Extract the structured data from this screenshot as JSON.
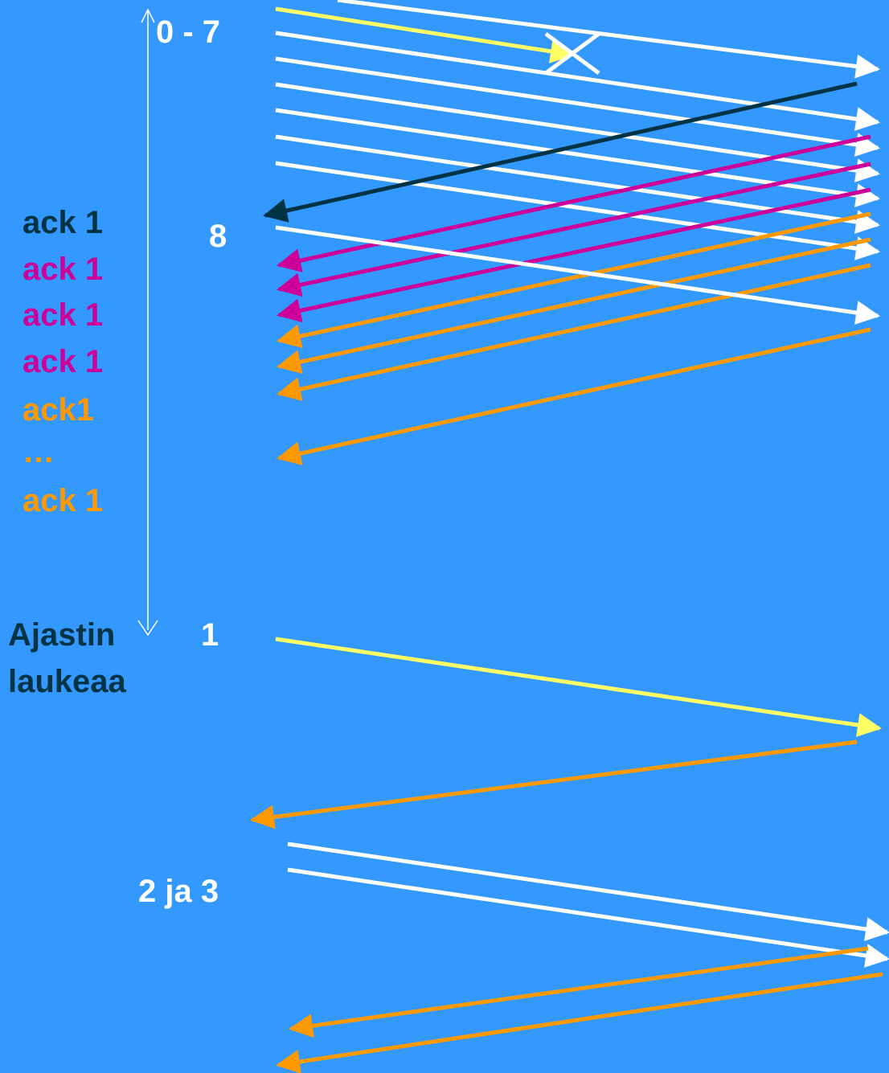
{
  "labels": {
    "seq_0_7": "0 - 7",
    "seq_8": "8",
    "seq_1": "1",
    "seq_2_3": "2 ja 3",
    "ack_1": "ack 1",
    "ack_2": "ack 1",
    "ack_3": "ack 1",
    "ack_4": "ack 1",
    "ack_5": "ack1",
    "ack_ellipsis": "…",
    "ack_6": "ack 1",
    "timer_line1": "Ajastin",
    "timer_line2": "laukeaa"
  },
  "colors": {
    "background": "#3399ff",
    "segment": "#ffffff",
    "retransmitted_segment": "#ffff66",
    "ack_first": "#003344",
    "ack_duplicate": "#cc0099",
    "ack_later": "#ff9900",
    "label_dark": "#003344",
    "label_white": "#ffffff",
    "timer": "#ffffff",
    "loss_mark": "#ffffff"
  }
}
